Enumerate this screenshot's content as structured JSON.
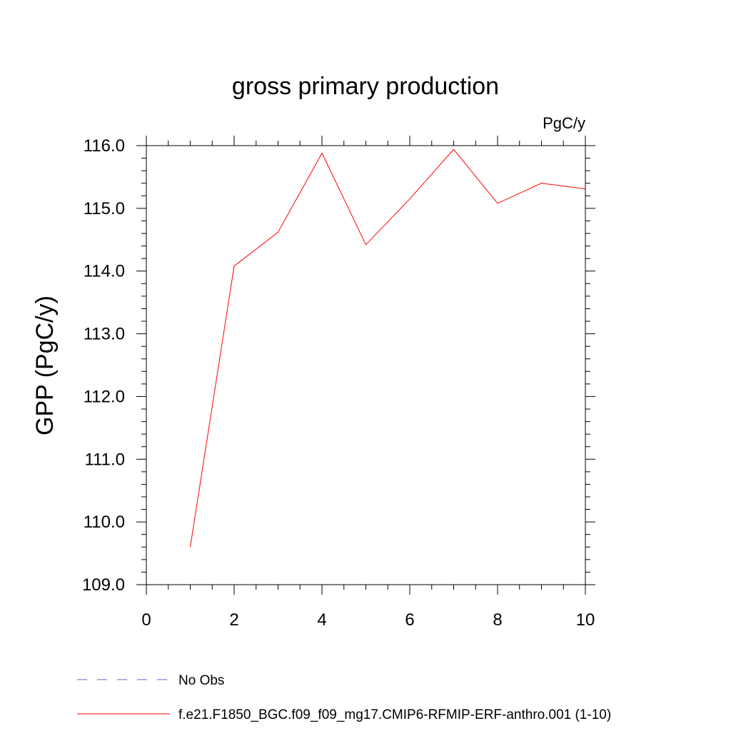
{
  "chart_data": {
    "type": "line",
    "title": "gross primary production",
    "units": "PgC/y",
    "xlabel": "",
    "ylabel": "GPP  (PgC/y)",
    "xlim": [
      0,
      10
    ],
    "ylim": [
      109.0,
      116.0
    ],
    "x_ticks": [
      "0",
      "2",
      "4",
      "6",
      "8",
      "10"
    ],
    "y_ticks": [
      "109.0",
      "110.0",
      "111.0",
      "112.0",
      "113.0",
      "114.0",
      "115.0",
      "116.0"
    ],
    "grid": false,
    "legend_position": "bottom",
    "series": [
      {
        "name": "No Obs",
        "color": "#6a5acd",
        "style": "dashed",
        "x": [],
        "y": []
      },
      {
        "name": "f.e21.F1850_BGC.f09_f09_mg17.CMIP6-RFMIP-ERF-anthro.001 (1-10)",
        "color": "#ff0000",
        "style": "solid",
        "x": [
          1,
          2,
          3,
          4,
          5,
          6,
          7,
          8,
          9,
          10
        ],
        "y": [
          109.6,
          114.08,
          114.62,
          115.88,
          114.42,
          115.15,
          115.94,
          115.08,
          115.4,
          115.31
        ]
      }
    ]
  }
}
